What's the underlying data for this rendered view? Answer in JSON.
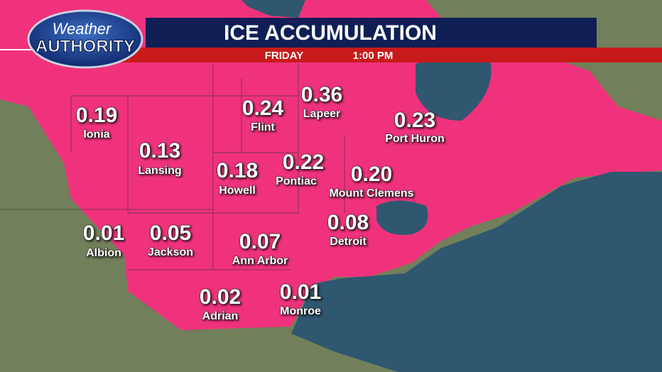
{
  "header": {
    "logo_top": "Weather",
    "logo_bottom": "AUTHORITY",
    "title": "ICE ACCUMULATION",
    "day": "FRIDAY",
    "time": "1:00 PM"
  },
  "cities": [
    {
      "value": "0.19",
      "name": "Ionia"
    },
    {
      "value": "0.13",
      "name": "Lansing"
    },
    {
      "value": "0.24",
      "name": "Flint"
    },
    {
      "value": "0.36",
      "name": "Lapeer"
    },
    {
      "value": "0.23",
      "name": "Port Huron"
    },
    {
      "value": "0.18",
      "name": "Howell"
    },
    {
      "value": "0.22",
      "name": "Pontiac"
    },
    {
      "value": "0.20",
      "name": "Mount Clemens"
    },
    {
      "value": "0.01",
      "name": "Albion"
    },
    {
      "value": "0.05",
      "name": "Jackson"
    },
    {
      "value": "0.07",
      "name": "Ann Arbor"
    },
    {
      "value": "0.08",
      "name": "Detroit"
    },
    {
      "value": "0.02",
      "name": "Adrian"
    },
    {
      "value": "0.01",
      "name": "Monroe"
    }
  ]
}
